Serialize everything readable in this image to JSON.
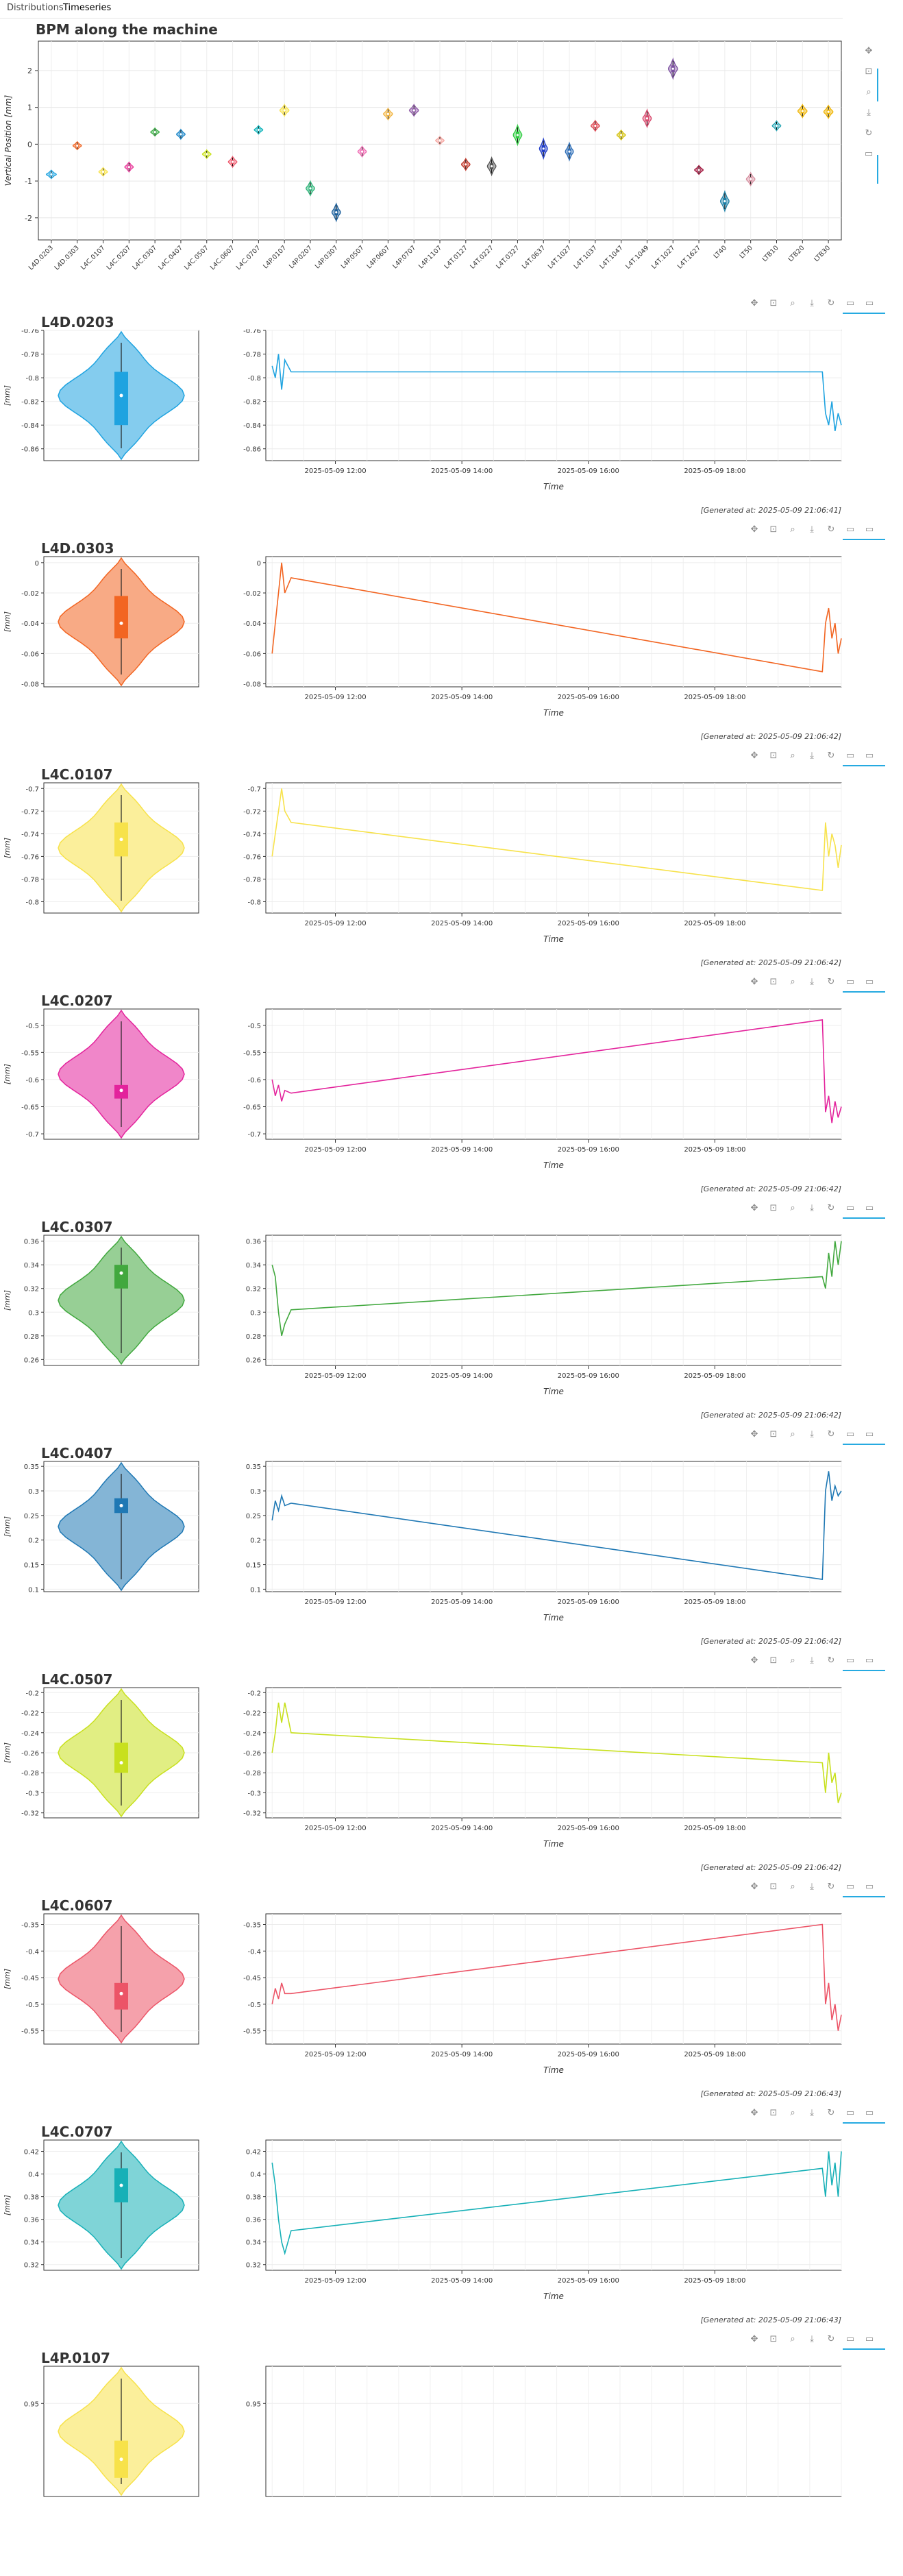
{
  "tabs": [
    "Distributions",
    "Timeseries"
  ],
  "overview": {
    "title": "BPM along the machine",
    "ylabel": "Vertical Position [mm]",
    "yticks": [
      2,
      1,
      0,
      -1,
      -2
    ],
    "categories": [
      "L4D.0203",
      "L4D.0303",
      "L4C.0107",
      "L4C.0207",
      "L4C.0307",
      "L4C.0407",
      "L4C.0507",
      "L4C.0607",
      "L4C.0707",
      "L4P.0107",
      "L4P.0207",
      "L4P.0307",
      "L4P.0507",
      "L4P.0607",
      "L4P.0707",
      "L4P.1107",
      "L4T.0127",
      "L4T.0227",
      "L4T.0327",
      "L4T.0637",
      "L4T.1027",
      "L4T.1037",
      "L4T.1047",
      "L4T.1049",
      "L4T.1027",
      "L4T.1627",
      "LT40",
      "LT50",
      "LTB10",
      "LTB20",
      "LTB30"
    ]
  },
  "chart_data": [
    {
      "type": "violin",
      "title": "BPM along the machine",
      "ylabel": "Vertical Position [mm]",
      "ylim": [
        -2.6,
        2.8
      ],
      "grid": true,
      "categories": [
        "L4D.0203",
        "L4D.0303",
        "L4C.0107",
        "L4C.0207",
        "L4C.0307",
        "L4C.0407",
        "L4C.0507",
        "L4C.0607",
        "L4C.0707",
        "L4P.0107",
        "L4P.0207",
        "L4P.0307",
        "L4P.0507",
        "L4P.0607",
        "L4P.0707",
        "L4P.1107",
        "L4T.0127",
        "L4T.0227",
        "L4T.0327",
        "L4T.0637",
        "L4T.1027",
        "L4T.1037",
        "L4T.1047",
        "L4T.1049",
        "L4T.1027",
        "L4T.1627",
        "LT40",
        "LT50",
        "LTB10",
        "LTB20",
        "LTB30"
      ],
      "medians": [
        -0.82,
        -0.04,
        -0.75,
        -0.62,
        0.33,
        0.27,
        -0.27,
        -0.48,
        0.39,
        0.92,
        -1.2,
        -1.85,
        -0.2,
        0.82,
        0.92,
        0.1,
        -0.55,
        -0.6,
        0.25,
        -0.12,
        -0.2,
        0.5,
        0.25,
        0.7,
        2.05,
        -0.7,
        -1.55,
        -0.95,
        0.5,
        0.9,
        0.88
      ],
      "colors": [
        "#1fa3e0",
        "#f26522",
        "#f7e24a",
        "#e83f9c",
        "#41b24b",
        "#1e88c9",
        "#c9e21d",
        "#ef5a6e",
        "#12b5bc",
        "#f7e24a",
        "#2fb57a",
        "#1a5f9c",
        "#f06fb5",
        "#f2b542",
        "#8e59a6",
        "#f5a5a0",
        "#c0392b",
        "#555555",
        "#2ecc40",
        "#1f3cc9",
        "#2f6fb8",
        "#e04b55",
        "#d4c20e",
        "#d94a6e",
        "#7b4fa0",
        "#a0143c",
        "#1a7fa6",
        "#d68fa0",
        "#2aa6b5",
        "#f0b400",
        "#f0b400"
      ],
      "widths": [
        0.35,
        0.3,
        0.3,
        0.3,
        0.3,
        0.3,
        0.3,
        0.3,
        0.3,
        0.32,
        0.3,
        0.3,
        0.3,
        0.32,
        0.32,
        0.3,
        0.3,
        0.3,
        0.3,
        0.28,
        0.28,
        0.3,
        0.3,
        0.3,
        0.32,
        0.3,
        0.3,
        0.3,
        0.3,
        0.32,
        0.32
      ],
      "spreads": [
        0.05,
        0.04,
        0.05,
        0.08,
        0.04,
        0.08,
        0.05,
        0.1,
        0.05,
        0.12,
        0.18,
        0.25,
        0.1,
        0.12,
        0.12,
        0.05,
        0.12,
        0.25,
        0.3,
        0.3,
        0.25,
        0.1,
        0.08,
        0.25,
        0.3,
        0.06,
        0.3,
        0.15,
        0.08,
        0.15,
        0.15
      ]
    },
    {
      "type": "violin+line",
      "title": "L4D.0203",
      "color": "#1fa3e0",
      "ylabel": "[mm]",
      "xlabel": "Time",
      "yticks": [
        -0.76,
        -0.78,
        -0.8,
        -0.82,
        -0.84,
        -0.86
      ],
      "ylim": [
        -0.87,
        -0.76
      ],
      "xticks": [
        "2025-05-09 12:00",
        "2025-05-09 14:00",
        "2025-05-09 16:00",
        "2025-05-09 18:00"
      ],
      "median": -0.815,
      "box": [
        -0.84,
        -0.795
      ],
      "line": [
        [
          11.0,
          -0.79
        ],
        [
          11.05,
          -0.8
        ],
        [
          11.1,
          -0.78
        ],
        [
          11.15,
          -0.81
        ],
        [
          11.2,
          -0.785
        ],
        [
          11.3,
          -0.795
        ],
        [
          19.7,
          -0.795
        ],
        [
          19.75,
          -0.83
        ],
        [
          19.8,
          -0.84
        ],
        [
          19.85,
          -0.82
        ],
        [
          19.9,
          -0.845
        ],
        [
          19.95,
          -0.83
        ],
        [
          20.0,
          -0.84
        ]
      ],
      "generated": "[Generated at: 2025-05-09 21:06:41]"
    },
    {
      "type": "violin+line",
      "title": "L4D.0303",
      "color": "#f26522",
      "ylabel": "[mm]",
      "xlabel": "Time",
      "yticks": [
        0,
        -0.02,
        -0.04,
        -0.06,
        -0.08
      ],
      "ylim": [
        -0.082,
        0.004
      ],
      "xticks": [
        "2025-05-09 12:00",
        "2025-05-09 14:00",
        "2025-05-09 16:00",
        "2025-05-09 18:00"
      ],
      "median": -0.04,
      "box": [
        -0.05,
        -0.022
      ],
      "line": [
        [
          11.0,
          -0.06
        ],
        [
          11.05,
          -0.04
        ],
        [
          11.1,
          -0.02
        ],
        [
          11.15,
          0.0
        ],
        [
          11.2,
          -0.02
        ],
        [
          11.3,
          -0.01
        ],
        [
          19.7,
          -0.072
        ],
        [
          19.75,
          -0.04
        ],
        [
          19.8,
          -0.03
        ],
        [
          19.85,
          -0.05
        ],
        [
          19.9,
          -0.04
        ],
        [
          19.95,
          -0.06
        ],
        [
          20.0,
          -0.05
        ]
      ],
      "generated": "[Generated at: 2025-05-09 21:06:42]"
    },
    {
      "type": "violin+line",
      "title": "L4C.0107",
      "color": "#f7e24a",
      "ylabel": "[mm]",
      "xlabel": "Time",
      "yticks": [
        -0.7,
        -0.72,
        -0.74,
        -0.76,
        -0.78,
        -0.8
      ],
      "ylim": [
        -0.81,
        -0.695
      ],
      "xticks": [
        "2025-05-09 12:00",
        "2025-05-09 14:00",
        "2025-05-09 16:00",
        "2025-05-09 18:00"
      ],
      "median": -0.745,
      "box": [
        -0.76,
        -0.73
      ],
      "line": [
        [
          11.0,
          -0.76
        ],
        [
          11.05,
          -0.74
        ],
        [
          11.1,
          -0.72
        ],
        [
          11.15,
          -0.7
        ],
        [
          11.2,
          -0.72
        ],
        [
          11.3,
          -0.73
        ],
        [
          19.7,
          -0.79
        ],
        [
          19.75,
          -0.73
        ],
        [
          19.8,
          -0.76
        ],
        [
          19.85,
          -0.74
        ],
        [
          19.9,
          -0.75
        ],
        [
          19.95,
          -0.77
        ],
        [
          20.0,
          -0.75
        ]
      ],
      "generated": "[Generated at: 2025-05-09 21:06:42]"
    },
    {
      "type": "violin+line",
      "title": "L4C.0207",
      "color": "#e3239c",
      "ylabel": "[mm]",
      "xlabel": "Time",
      "yticks": [
        -0.5,
        -0.55,
        -0.6,
        -0.65,
        -0.7
      ],
      "ylim": [
        -0.71,
        -0.47
      ],
      "xticks": [
        "2025-05-09 12:00",
        "2025-05-09 14:00",
        "2025-05-09 16:00",
        "2025-05-09 18:00"
      ],
      "median": -0.62,
      "box": [
        -0.635,
        -0.61
      ],
      "line": [
        [
          11.0,
          -0.6
        ],
        [
          11.05,
          -0.63
        ],
        [
          11.1,
          -0.61
        ],
        [
          11.15,
          -0.64
        ],
        [
          11.2,
          -0.62
        ],
        [
          11.3,
          -0.625
        ],
        [
          19.7,
          -0.49
        ],
        [
          19.75,
          -0.66
        ],
        [
          19.8,
          -0.63
        ],
        [
          19.85,
          -0.68
        ],
        [
          19.9,
          -0.64
        ],
        [
          19.95,
          -0.67
        ],
        [
          20.0,
          -0.65
        ]
      ],
      "generated": "[Generated at: 2025-05-09 21:06:42]"
    },
    {
      "type": "violin+line",
      "title": "L4C.0307",
      "color": "#41a83e",
      "ylabel": "[mm]",
      "xlabel": "Time",
      "yticks": [
        0.36,
        0.34,
        0.32,
        0.3,
        0.28,
        0.26
      ],
      "ylim": [
        0.255,
        0.365
      ],
      "xticks": [
        "2025-05-09 12:00",
        "2025-05-09 14:00",
        "2025-05-09 16:00",
        "2025-05-09 18:00"
      ],
      "median": 0.333,
      "box": [
        0.32,
        0.34
      ],
      "line": [
        [
          11.0,
          0.34
        ],
        [
          11.05,
          0.33
        ],
        [
          11.1,
          0.3
        ],
        [
          11.15,
          0.28
        ],
        [
          11.2,
          0.29
        ],
        [
          11.3,
          0.302
        ],
        [
          19.7,
          0.33
        ],
        [
          19.75,
          0.32
        ],
        [
          19.8,
          0.35
        ],
        [
          19.85,
          0.33
        ],
        [
          19.9,
          0.36
        ],
        [
          19.95,
          0.34
        ],
        [
          20.0,
          0.36
        ]
      ],
      "generated": "[Generated at: 2025-05-09 21:06:42]"
    },
    {
      "type": "violin+line",
      "title": "L4C.0407",
      "color": "#1f78b4",
      "ylabel": "[mm]",
      "xlabel": "Time",
      "yticks": [
        0.35,
        0.3,
        0.25,
        0.2,
        0.15,
        0.1
      ],
      "ylim": [
        0.095,
        0.36
      ],
      "xticks": [
        "2025-05-09 12:00",
        "2025-05-09 14:00",
        "2025-05-09 16:00",
        "2025-05-09 18:00"
      ],
      "median": 0.27,
      "box": [
        0.255,
        0.285
      ],
      "line": [
        [
          11.0,
          0.24
        ],
        [
          11.05,
          0.28
        ],
        [
          11.1,
          0.26
        ],
        [
          11.15,
          0.29
        ],
        [
          11.2,
          0.27
        ],
        [
          11.3,
          0.275
        ],
        [
          19.7,
          0.12
        ],
        [
          19.75,
          0.3
        ],
        [
          19.8,
          0.34
        ],
        [
          19.85,
          0.28
        ],
        [
          19.9,
          0.31
        ],
        [
          19.95,
          0.29
        ],
        [
          20.0,
          0.3
        ]
      ],
      "generated": "[Generated at: 2025-05-09 21:06:42]"
    },
    {
      "type": "violin+line",
      "title": "L4C.0507",
      "color": "#c8e01e",
      "ylabel": "[mm]",
      "xlabel": "Time",
      "yticks": [
        -0.2,
        -0.22,
        -0.24,
        -0.26,
        -0.28,
        -0.3,
        -0.32
      ],
      "ylim": [
        -0.325,
        -0.195
      ],
      "xticks": [
        "2025-05-09 12:00",
        "2025-05-09 14:00",
        "2025-05-09 16:00",
        "2025-05-09 18:00"
      ],
      "median": -0.27,
      "box": [
        -0.28,
        -0.25
      ],
      "line": [
        [
          11.0,
          -0.26
        ],
        [
          11.05,
          -0.24
        ],
        [
          11.1,
          -0.21
        ],
        [
          11.15,
          -0.23
        ],
        [
          11.2,
          -0.21
        ],
        [
          11.3,
          -0.24
        ],
        [
          19.7,
          -0.27
        ],
        [
          19.75,
          -0.3
        ],
        [
          19.8,
          -0.26
        ],
        [
          19.85,
          -0.29
        ],
        [
          19.9,
          -0.28
        ],
        [
          19.95,
          -0.31
        ],
        [
          20.0,
          -0.3
        ]
      ],
      "generated": "[Generated at: 2025-05-09 21:06:42]"
    },
    {
      "type": "violin+line",
      "title": "L4C.0607",
      "color": "#ec5467",
      "ylabel": "[mm]",
      "xlabel": "Time",
      "yticks": [
        -0.35,
        -0.4,
        -0.45,
        -0.5,
        -0.55
      ],
      "ylim": [
        -0.575,
        -0.33
      ],
      "xticks": [
        "2025-05-09 12:00",
        "2025-05-09 14:00",
        "2025-05-09 16:00",
        "2025-05-09 18:00"
      ],
      "median": -0.48,
      "box": [
        -0.51,
        -0.46
      ],
      "line": [
        [
          11.0,
          -0.5
        ],
        [
          11.05,
          -0.47
        ],
        [
          11.1,
          -0.49
        ],
        [
          11.15,
          -0.46
        ],
        [
          11.2,
          -0.48
        ],
        [
          11.3,
          -0.48
        ],
        [
          19.7,
          -0.35
        ],
        [
          19.75,
          -0.5
        ],
        [
          19.8,
          -0.46
        ],
        [
          19.85,
          -0.53
        ],
        [
          19.9,
          -0.5
        ],
        [
          19.95,
          -0.55
        ],
        [
          20.0,
          -0.52
        ]
      ],
      "generated": "[Generated at: 2025-05-09 21:06:43]"
    },
    {
      "type": "violin+line",
      "title": "L4C.0707",
      "color": "#17b0b7",
      "ylabel": "[mm]",
      "xlabel": "Time",
      "yticks": [
        0.42,
        0.4,
        0.38,
        0.36,
        0.34,
        0.32
      ],
      "ylim": [
        0.315,
        0.43
      ],
      "xticks": [
        "2025-05-09 12:00",
        "2025-05-09 14:00",
        "2025-05-09 16:00",
        "2025-05-09 18:00"
      ],
      "median": 0.39,
      "box": [
        0.375,
        0.405
      ],
      "line": [
        [
          11.0,
          0.41
        ],
        [
          11.05,
          0.39
        ],
        [
          11.1,
          0.36
        ],
        [
          11.15,
          0.34
        ],
        [
          11.2,
          0.33
        ],
        [
          11.3,
          0.35
        ],
        [
          19.7,
          0.405
        ],
        [
          19.75,
          0.38
        ],
        [
          19.8,
          0.42
        ],
        [
          19.85,
          0.39
        ],
        [
          19.9,
          0.41
        ],
        [
          19.95,
          0.38
        ],
        [
          20.0,
          0.42
        ]
      ],
      "generated": "[Generated at: 2025-05-09 21:06:43]"
    },
    {
      "type": "violin+line",
      "title": "L4P.0107",
      "color": "#f7e24a",
      "ylabel": "",
      "xlabel": "",
      "yticks": [
        0.95
      ],
      "ylim": [
        0.9,
        0.97
      ],
      "xticks": [],
      "median": 0.92,
      "box": [
        0.91,
        0.93
      ],
      "line": [],
      "generated": ""
    }
  ]
}
